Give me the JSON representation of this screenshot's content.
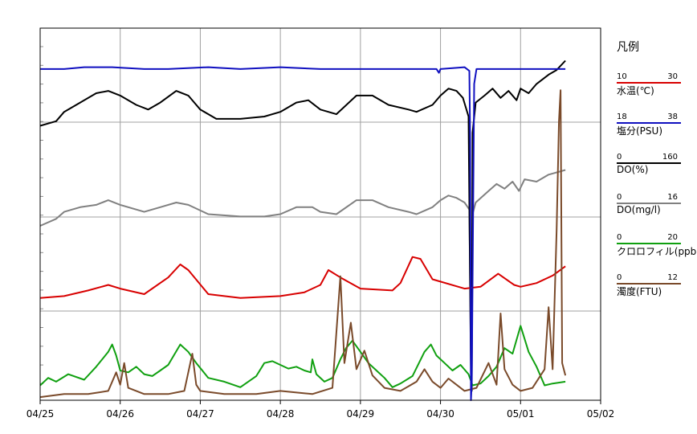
{
  "chart_data": {
    "type": "line",
    "x_ticks": [
      "04/25",
      "04/26",
      "04/27",
      "04/28",
      "04/29",
      "04/30",
      "05/01",
      "05/02"
    ],
    "x_range": [
      "04/25",
      "05/02"
    ],
    "grid": true,
    "legend_position": "right",
    "legend_title": "凡例",
    "series": [
      {
        "name": "水温(℃)",
        "min": "10",
        "max": "30",
        "color": "#d80000",
        "ymin": 10,
        "ymax": 30,
        "points": [
          [
            0.0,
            15.5
          ],
          [
            0.3,
            15.6
          ],
          [
            0.6,
            15.9
          ],
          [
            0.85,
            16.2
          ],
          [
            1.0,
            16.0
          ],
          [
            1.3,
            15.7
          ],
          [
            1.6,
            16.6
          ],
          [
            1.75,
            17.3
          ],
          [
            1.85,
            17.0
          ],
          [
            2.1,
            15.7
          ],
          [
            2.5,
            15.5
          ],
          [
            3.0,
            15.6
          ],
          [
            3.3,
            15.8
          ],
          [
            3.5,
            16.2
          ],
          [
            3.6,
            17.0
          ],
          [
            3.75,
            16.6
          ],
          [
            4.0,
            16.0
          ],
          [
            4.4,
            15.9
          ],
          [
            4.5,
            16.3
          ],
          [
            4.65,
            17.7
          ],
          [
            4.75,
            17.6
          ],
          [
            4.9,
            16.5
          ],
          [
            5.3,
            16.0
          ],
          [
            5.5,
            16.1
          ],
          [
            5.72,
            16.8
          ],
          [
            5.92,
            16.2
          ],
          [
            6.0,
            16.1
          ],
          [
            6.2,
            16.3
          ],
          [
            6.4,
            16.7
          ],
          [
            6.56,
            17.2
          ],
          [
            6.56,
            17.2
          ]
        ]
      },
      {
        "name": "塩分(PSU)",
        "min": "18",
        "max": "38",
        "color": "#1010c0",
        "ymin": 18,
        "ymax": 38,
        "points": [
          [
            0.0,
            35.8
          ],
          [
            0.3,
            35.8
          ],
          [
            0.55,
            35.9
          ],
          [
            0.9,
            35.9
          ],
          [
            1.3,
            35.8
          ],
          [
            1.6,
            35.8
          ],
          [
            2.1,
            35.9
          ],
          [
            2.5,
            35.8
          ],
          [
            3.0,
            35.9
          ],
          [
            3.5,
            35.8
          ],
          [
            4.0,
            35.8
          ],
          [
            4.6,
            35.8
          ],
          [
            4.95,
            35.8
          ],
          [
            4.98,
            35.6
          ],
          [
            5.0,
            35.8
          ],
          [
            5.3,
            35.9
          ],
          [
            5.36,
            35.7
          ],
          [
            5.37,
            32.0
          ],
          [
            5.38,
            18.0
          ],
          [
            5.39,
            19.0
          ],
          [
            5.42,
            35.0
          ],
          [
            5.45,
            35.8
          ],
          [
            5.8,
            35.8
          ],
          [
            6.2,
            35.8
          ],
          [
            6.56,
            35.8
          ]
        ]
      },
      {
        "name": "DO(%)",
        "min": "0",
        "max": "160",
        "color": "#000000",
        "ymin": 0,
        "ymax": 160,
        "points": [
          [
            0.0,
            118
          ],
          [
            0.2,
            120
          ],
          [
            0.3,
            124
          ],
          [
            0.5,
            128
          ],
          [
            0.7,
            132
          ],
          [
            0.85,
            133
          ],
          [
            1.0,
            131
          ],
          [
            1.2,
            127
          ],
          [
            1.35,
            125
          ],
          [
            1.5,
            128
          ],
          [
            1.7,
            133
          ],
          [
            1.85,
            131
          ],
          [
            2.0,
            125
          ],
          [
            2.2,
            121
          ],
          [
            2.5,
            121
          ],
          [
            2.8,
            122
          ],
          [
            3.0,
            124
          ],
          [
            3.2,
            128
          ],
          [
            3.35,
            129
          ],
          [
            3.5,
            125
          ],
          [
            3.7,
            123
          ],
          [
            3.95,
            131
          ],
          [
            4.15,
            131
          ],
          [
            4.35,
            127
          ],
          [
            4.6,
            125
          ],
          [
            4.7,
            124
          ],
          [
            4.9,
            127
          ],
          [
            5.0,
            131
          ],
          [
            5.1,
            134
          ],
          [
            5.2,
            133
          ],
          [
            5.28,
            130
          ],
          [
            5.35,
            122
          ],
          [
            5.38,
            10
          ],
          [
            5.39,
            4
          ],
          [
            5.4,
            115
          ],
          [
            5.44,
            128
          ],
          [
            5.55,
            131
          ],
          [
            5.65,
            134
          ],
          [
            5.75,
            130
          ],
          [
            5.85,
            133
          ],
          [
            5.95,
            129
          ],
          [
            6.0,
            134
          ],
          [
            6.1,
            132
          ],
          [
            6.2,
            136
          ],
          [
            6.35,
            140
          ],
          [
            6.45,
            142
          ],
          [
            6.56,
            146
          ]
        ]
      },
      {
        "name": "DO(mg/l)",
        "min": "0",
        "max": "16",
        "color": "#808080",
        "ymin": 0,
        "ymax": 16,
        "points": [
          [
            0.0,
            7.5
          ],
          [
            0.2,
            7.8
          ],
          [
            0.3,
            8.1
          ],
          [
            0.5,
            8.3
          ],
          [
            0.7,
            8.4
          ],
          [
            0.85,
            8.6
          ],
          [
            1.0,
            8.4
          ],
          [
            1.3,
            8.1
          ],
          [
            1.5,
            8.3
          ],
          [
            1.7,
            8.5
          ],
          [
            1.85,
            8.4
          ],
          [
            2.1,
            8.0
          ],
          [
            2.5,
            7.9
          ],
          [
            2.8,
            7.9
          ],
          [
            3.0,
            8.0
          ],
          [
            3.2,
            8.3
          ],
          [
            3.4,
            8.3
          ],
          [
            3.5,
            8.1
          ],
          [
            3.7,
            8.0
          ],
          [
            3.95,
            8.6
          ],
          [
            4.15,
            8.6
          ],
          [
            4.35,
            8.3
          ],
          [
            4.6,
            8.1
          ],
          [
            4.7,
            8.0
          ],
          [
            4.9,
            8.3
          ],
          [
            5.0,
            8.6
          ],
          [
            5.1,
            8.8
          ],
          [
            5.2,
            8.7
          ],
          [
            5.3,
            8.5
          ],
          [
            5.36,
            8.2
          ],
          [
            5.38,
            1.5
          ],
          [
            5.39,
            1.0
          ],
          [
            5.4,
            8.0
          ],
          [
            5.44,
            8.5
          ],
          [
            5.6,
            9.0
          ],
          [
            5.7,
            9.3
          ],
          [
            5.8,
            9.1
          ],
          [
            5.9,
            9.4
          ],
          [
            5.98,
            9.0
          ],
          [
            6.05,
            9.5
          ],
          [
            6.2,
            9.4
          ],
          [
            6.35,
            9.7
          ],
          [
            6.56,
            9.9
          ]
        ]
      },
      {
        "name": "クロロフィル(ppb)",
        "min": "0",
        "max": "20",
        "color": "#10a010",
        "ymin": 0,
        "ymax": 20,
        "points": [
          [
            0.0,
            0.8
          ],
          [
            0.1,
            1.2
          ],
          [
            0.2,
            1.0
          ],
          [
            0.35,
            1.4
          ],
          [
            0.55,
            1.1
          ],
          [
            0.7,
            1.8
          ],
          [
            0.85,
            2.6
          ],
          [
            0.9,
            3.0
          ],
          [
            0.95,
            2.4
          ],
          [
            1.0,
            1.6
          ],
          [
            1.1,
            1.5
          ],
          [
            1.2,
            1.8
          ],
          [
            1.3,
            1.4
          ],
          [
            1.4,
            1.3
          ],
          [
            1.5,
            1.6
          ],
          [
            1.6,
            1.9
          ],
          [
            1.75,
            3.0
          ],
          [
            1.85,
            2.6
          ],
          [
            1.95,
            2.0
          ],
          [
            2.1,
            1.2
          ],
          [
            2.3,
            1.0
          ],
          [
            2.5,
            0.7
          ],
          [
            2.7,
            1.3
          ],
          [
            2.8,
            2.0
          ],
          [
            2.9,
            2.1
          ],
          [
            3.0,
            1.9
          ],
          [
            3.1,
            1.7
          ],
          [
            3.2,
            1.8
          ],
          [
            3.3,
            1.6
          ],
          [
            3.38,
            1.5
          ],
          [
            3.4,
            2.2
          ],
          [
            3.45,
            1.4
          ],
          [
            3.55,
            1.0
          ],
          [
            3.65,
            1.2
          ],
          [
            3.75,
            2.2
          ],
          [
            3.82,
            2.8
          ],
          [
            3.9,
            3.2
          ],
          [
            4.0,
            2.6
          ],
          [
            4.1,
            2.0
          ],
          [
            4.2,
            1.6
          ],
          [
            4.3,
            1.2
          ],
          [
            4.4,
            0.7
          ],
          [
            4.5,
            0.9
          ],
          [
            4.65,
            1.3
          ],
          [
            4.8,
            2.6
          ],
          [
            4.88,
            3.0
          ],
          [
            4.95,
            2.4
          ],
          [
            5.05,
            2.0
          ],
          [
            5.15,
            1.6
          ],
          [
            5.25,
            1.9
          ],
          [
            5.35,
            1.4
          ],
          [
            5.4,
            0.8
          ],
          [
            5.5,
            0.9
          ],
          [
            5.6,
            1.3
          ],
          [
            5.7,
            1.8
          ],
          [
            5.8,
            2.8
          ],
          [
            5.9,
            2.5
          ],
          [
            6.0,
            4.0
          ],
          [
            6.1,
            2.6
          ],
          [
            6.2,
            1.8
          ],
          [
            6.3,
            0.8
          ],
          [
            6.4,
            0.9
          ],
          [
            6.56,
            1.0
          ]
        ]
      },
      {
        "name": "濁度(FTU)",
        "min": "0",
        "max": "12",
        "color": "#7a4a2a",
        "ymin": 0,
        "ymax": 12,
        "points": [
          [
            0.0,
            0.1
          ],
          [
            0.3,
            0.2
          ],
          [
            0.6,
            0.2
          ],
          [
            0.85,
            0.3
          ],
          [
            0.95,
            0.9
          ],
          [
            1.0,
            0.5
          ],
          [
            1.05,
            1.2
          ],
          [
            1.1,
            0.4
          ],
          [
            1.3,
            0.2
          ],
          [
            1.6,
            0.2
          ],
          [
            1.8,
            0.3
          ],
          [
            1.9,
            1.5
          ],
          [
            1.95,
            0.5
          ],
          [
            2.0,
            0.3
          ],
          [
            2.3,
            0.2
          ],
          [
            2.7,
            0.2
          ],
          [
            3.0,
            0.3
          ],
          [
            3.4,
            0.2
          ],
          [
            3.65,
            0.4
          ],
          [
            3.75,
            4.0
          ],
          [
            3.8,
            1.2
          ],
          [
            3.88,
            2.5
          ],
          [
            3.95,
            1.0
          ],
          [
            4.05,
            1.6
          ],
          [
            4.15,
            0.8
          ],
          [
            4.3,
            0.4
          ],
          [
            4.5,
            0.3
          ],
          [
            4.7,
            0.6
          ],
          [
            4.8,
            1.0
          ],
          [
            4.9,
            0.6
          ],
          [
            5.0,
            0.4
          ],
          [
            5.1,
            0.7
          ],
          [
            5.2,
            0.5
          ],
          [
            5.3,
            0.3
          ],
          [
            5.45,
            0.4
          ],
          [
            5.6,
            1.2
          ],
          [
            5.7,
            0.5
          ],
          [
            5.75,
            2.8
          ],
          [
            5.8,
            1.0
          ],
          [
            5.9,
            0.5
          ],
          [
            6.0,
            0.3
          ],
          [
            6.15,
            0.4
          ],
          [
            6.3,
            1.0
          ],
          [
            6.35,
            3.0
          ],
          [
            6.4,
            1.0
          ],
          [
            6.45,
            5.5
          ],
          [
            6.48,
            9.0
          ],
          [
            6.5,
            10.0
          ],
          [
            6.52,
            1.2
          ],
          [
            6.56,
            0.8
          ]
        ]
      }
    ]
  }
}
